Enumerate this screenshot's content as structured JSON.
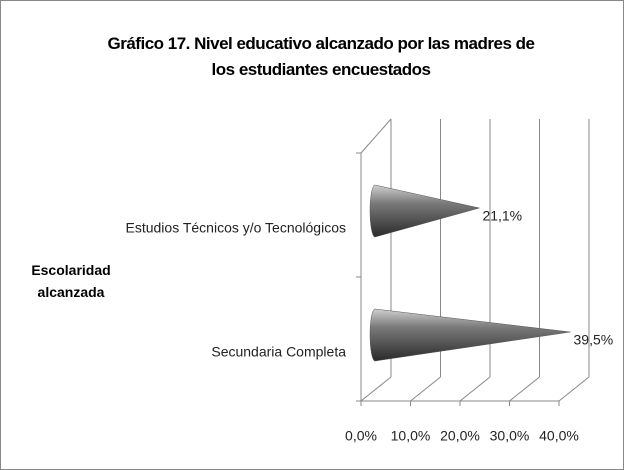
{
  "chart_data": {
    "type": "cone-bar",
    "title": "Gráfico 17. Nivel educativo alcanzado por las madres de los estudiantes encuestados",
    "y_axis_label": "Escolaridad alcanzada",
    "categories": [
      "Estudios Técnicos y/o Tecnológicos",
      "Secundaria Completa"
    ],
    "values": [
      21.1,
      39.5
    ],
    "value_labels": [
      "21,1%",
      "39,5%"
    ],
    "color": "#555555",
    "xlim": [
      0,
      40
    ],
    "xticks": [
      {
        "value": 0,
        "label": "0,0%"
      },
      {
        "value": 10,
        "label": "10,0%"
      },
      {
        "value": 20,
        "label": "20,0%"
      },
      {
        "value": 30,
        "label": "30,0%"
      },
      {
        "value": 40,
        "label": "40,0%"
      }
    ],
    "grid": true
  }
}
